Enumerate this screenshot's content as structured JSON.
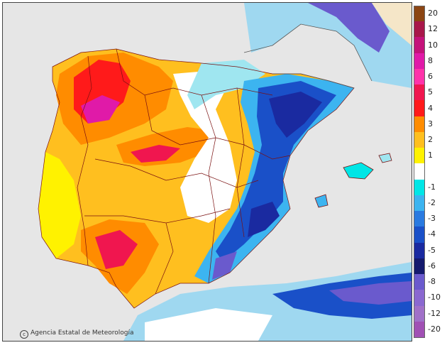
{
  "credit": {
    "icon": "copyright-icon",
    "icon_glyph": "c",
    "text": "Agencia Estatal de Meteorología"
  },
  "legend": {
    "items": [
      {
        "label": "20",
        "color": "#8b4513"
      },
      {
        "label": "12",
        "color": "#a8174a"
      },
      {
        "label": "10",
        "color": "#c4127a"
      },
      {
        "label": "8",
        "color": "#e01aa8"
      },
      {
        "label": "6",
        "color": "#ff33aa"
      },
      {
        "label": "5",
        "color": "#f0164f"
      },
      {
        "label": "4",
        "color": "#ff1a1a"
      },
      {
        "label": "3",
        "color": "#ff8c00"
      },
      {
        "label": "2",
        "color": "#ffbf1f"
      },
      {
        "label": "1",
        "color": "#fff200"
      },
      {
        "label": "",
        "color": "#ffffff"
      },
      {
        "label": "-1",
        "color": "#00e6e6"
      },
      {
        "label": "-2",
        "color": "#3cb4f0"
      },
      {
        "label": "-3",
        "color": "#2a7ae0"
      },
      {
        "label": "-4",
        "color": "#1a50c8"
      },
      {
        "label": "-5",
        "color": "#1a2aa0"
      },
      {
        "label": "-6",
        "color": "#141a6e"
      },
      {
        "label": "-8",
        "color": "#6a5acd"
      },
      {
        "label": "-10",
        "color": "#8a68d0"
      },
      {
        "label": "-12",
        "color": "#a070c8"
      },
      {
        "label": "-20",
        "color": "#a050b4"
      }
    ]
  }
}
